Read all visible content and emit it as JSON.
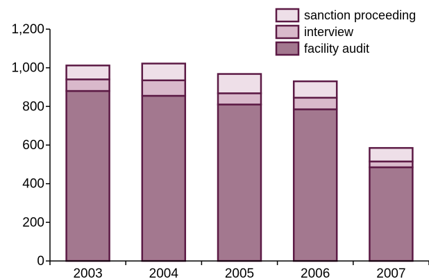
{
  "chart_data": {
    "type": "bar",
    "stacked": true,
    "categories": [
      "2003",
      "2004",
      "2005",
      "2006",
      "2007"
    ],
    "series": [
      {
        "name": "facility audit",
        "values": [
          880,
          855,
          810,
          785,
          485
        ],
        "color": "#a3788f"
      },
      {
        "name": "interview",
        "values": [
          60,
          80,
          58,
          60,
          30
        ],
        "color": "#d9b9cb"
      },
      {
        "name": "sanction proceeding",
        "values": [
          72,
          87,
          100,
          85,
          70
        ],
        "color": "#eedfe8"
      }
    ],
    "ylim": [
      0,
      1200
    ],
    "yticks": [
      0,
      200,
      400,
      600,
      800,
      1000,
      1200
    ],
    "ytick_labels": [
      "0",
      "200",
      "400",
      "600",
      "800",
      "1,000",
      "1,200"
    ],
    "title": "",
    "xlabel": "",
    "ylabel": "",
    "legend_position": "top-right",
    "grid": false,
    "border_color": "#5c1a45"
  }
}
